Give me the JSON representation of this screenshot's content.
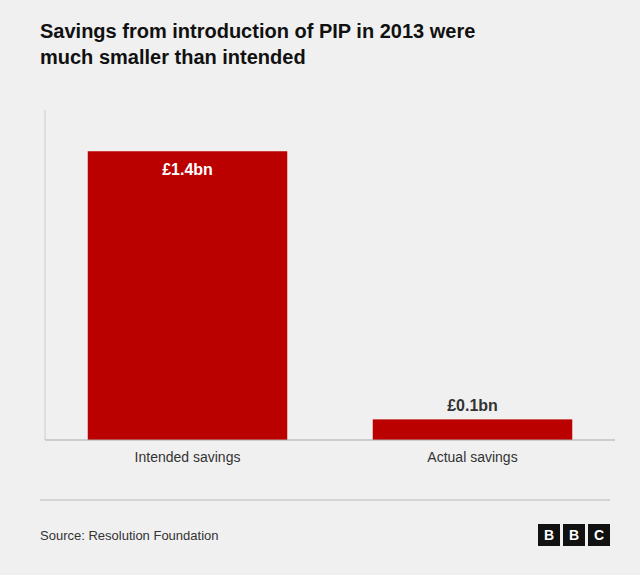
{
  "chart_data": {
    "type": "bar",
    "title": "Savings from introduction of PIP in 2013 were\nmuch smaller than intended",
    "categories": [
      "Intended savings",
      "Actual savings"
    ],
    "values": [
      1.4,
      0.1
    ],
    "value_labels": [
      "£1.4bn",
      "£0.1bn"
    ],
    "data_labels": true,
    "color": "#bb0000",
    "ylim": [
      0,
      1.6
    ],
    "tick_labels": "x",
    "grid": false,
    "source": "Source: Resolution Foundation",
    "logo_letters": [
      "B",
      "B",
      "C"
    ]
  }
}
